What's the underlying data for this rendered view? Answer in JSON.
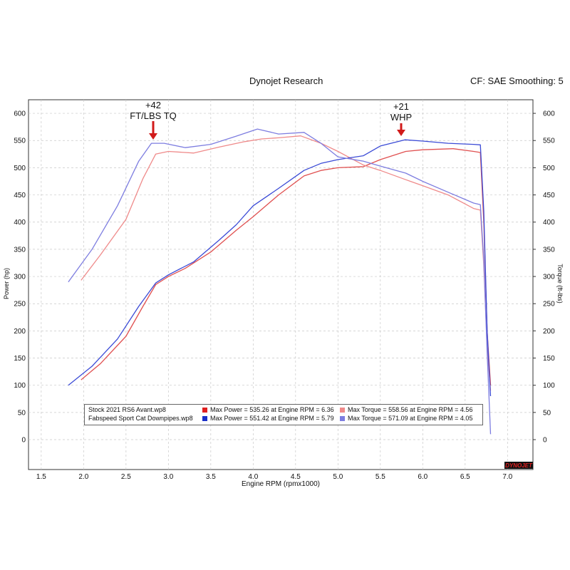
{
  "header": {
    "title": "Dynojet Research",
    "settings": "CF: SAE Smoothing: 5"
  },
  "annotations": {
    "torque_gain": [
      "+42",
      "FT/LBS TQ"
    ],
    "power_gain": [
      "+21",
      "WHP"
    ],
    "arrow_color": "#d11a1a"
  },
  "logo_text": "DYNOJET",
  "legend": {
    "rows": [
      {
        "file": "Stock 2021 RS6 Avant.wp8",
        "power_color": "#e02020",
        "power_text": "Max Power = 535.26 at Engine RPM = 6.36",
        "torque_color": "#ef8a8a",
        "torque_text": "Max Torque = 558.56 at Engine RPM = 4.56"
      },
      {
        "file": "Fabspeed Sport Cat Downpipes.wp8",
        "power_color": "#1a2fc8",
        "power_text": "Max Power = 551.42 at Engine RPM = 5.79",
        "torque_color": "#7d7de0",
        "torque_text": "Max Torque = 571.09 at Engine RPM = 4.05"
      }
    ]
  },
  "chart_data": {
    "type": "line",
    "title": "Dynojet Research",
    "xlabel": "Engine RPM (rpmx1000)",
    "ylabel": "Power (hp)",
    "y2label": "Torque (ft-lbs)",
    "xlim": [
      1.35,
      7.3
    ],
    "ylim": [
      -55,
      625
    ],
    "x_ticks": [
      "1.5",
      "2.0",
      "2.5",
      "3.0",
      "3.5",
      "4.0",
      "4.5",
      "5.0",
      "5.5",
      "6.0",
      "6.5",
      "7.0"
    ],
    "y_ticks": [
      "0",
      "50",
      "100",
      "150",
      "200",
      "250",
      "300",
      "350",
      "400",
      "450",
      "500",
      "550",
      "600"
    ],
    "grid": true,
    "series": [
      {
        "name": "Stock 2021 RS6 Avant.wp8 - Power",
        "color": "#e05050",
        "x": [
          1.97,
          2.2,
          2.5,
          2.7,
          2.85,
          3.0,
          3.2,
          3.5,
          3.8,
          4.0,
          4.3,
          4.6,
          4.8,
          5.0,
          5.3,
          5.5,
          5.8,
          6.0,
          6.36,
          6.6,
          6.68,
          6.72,
          6.76,
          6.8
        ],
        "y": [
          110,
          140,
          190,
          245,
          285,
          300,
          315,
          345,
          385,
          410,
          450,
          485,
          495,
          500,
          502,
          515,
          530,
          533,
          535,
          530,
          528,
          400,
          200,
          100
        ]
      },
      {
        "name": "Stock 2021 RS6 Avant.wp8 - Torque",
        "color": "#ef8a8a",
        "x": [
          1.97,
          2.2,
          2.5,
          2.7,
          2.85,
          3.0,
          3.3,
          3.6,
          3.9,
          4.1,
          4.3,
          4.56,
          4.8,
          5.0,
          5.3,
          5.5,
          5.8,
          6.0,
          6.3,
          6.6,
          6.68,
          6.72,
          6.76,
          6.8
        ],
        "y": [
          293,
          340,
          405,
          480,
          525,
          530,
          527,
          538,
          548,
          553,
          555,
          558.56,
          545,
          530,
          505,
          495,
          478,
          467,
          450,
          425,
          422,
          320,
          170,
          90
        ]
      },
      {
        "name": "Fabspeed Sport Cat Downpipes.wp8 - Power",
        "color": "#3a4ad6",
        "x": [
          1.82,
          2.1,
          2.4,
          2.65,
          2.85,
          3.0,
          3.3,
          3.6,
          3.8,
          4.0,
          4.3,
          4.6,
          4.8,
          5.0,
          5.3,
          5.5,
          5.79,
          6.0,
          6.3,
          6.6,
          6.68,
          6.72,
          6.76,
          6.8
        ],
        "y": [
          100,
          135,
          185,
          245,
          288,
          303,
          327,
          367,
          395,
          430,
          462,
          495,
          508,
          515,
          522,
          540,
          551.42,
          549,
          545,
          543,
          542,
          420,
          200,
          80
        ]
      },
      {
        "name": "Fabspeed Sport Cat Downpipes.wp8 - Torque",
        "color": "#7d7de0",
        "x": [
          1.82,
          2.1,
          2.4,
          2.65,
          2.8,
          2.95,
          3.2,
          3.5,
          3.8,
          4.05,
          4.3,
          4.6,
          4.8,
          5.0,
          5.3,
          5.5,
          5.8,
          6.0,
          6.3,
          6.6,
          6.68,
          6.72,
          6.76,
          6.8
        ],
        "y": [
          290,
          350,
          430,
          512,
          545,
          545,
          537,
          543,
          558,
          571.09,
          562,
          565,
          545,
          520,
          512,
          503,
          490,
          475,
          455,
          435,
          432,
          330,
          160,
          10
        ]
      }
    ]
  }
}
